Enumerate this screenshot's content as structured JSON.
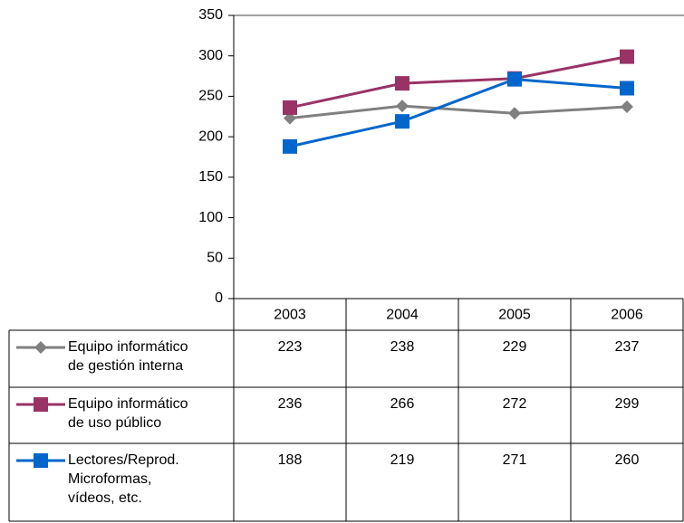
{
  "chart_data": {
    "type": "line",
    "categories": [
      "2003",
      "2004",
      "2005",
      "2006"
    ],
    "series": [
      {
        "name": "Equipo informático de gestión interna",
        "color": "#808080",
        "marker": "diamond",
        "values": [
          223,
          238,
          229,
          237
        ]
      },
      {
        "name": "Equipo informático de uso público",
        "color": "#993366",
        "marker": "square",
        "values": [
          236,
          266,
          272,
          299
        ]
      },
      {
        "name": "Lectores/Reprod. Microformas, vídeos, etc.",
        "color": "#0066cc",
        "marker": "square",
        "values": [
          188,
          219,
          271,
          260
        ]
      }
    ],
    "ylim": [
      0,
      350
    ],
    "yticks": [
      0,
      50,
      100,
      150,
      200,
      250,
      300,
      350
    ],
    "grid": false,
    "data_table": true
  }
}
